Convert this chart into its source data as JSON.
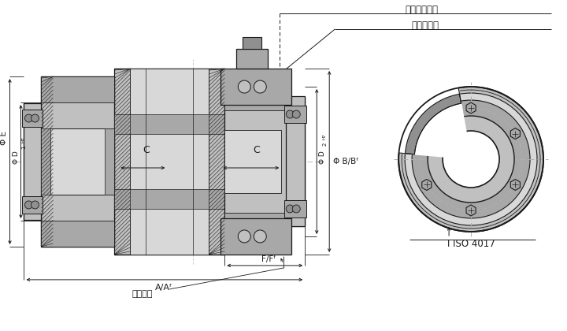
{
  "bg_color": "#ffffff",
  "lc": "#1a1a1a",
  "gray1": "#d8d8d8",
  "gray2": "#c0c0c0",
  "gray3": "#a8a8a8",
  "gray4": "#909090",
  "gray5": "#787878",
  "center_line_color": "#b0b0b0",
  "ann": {
    "zuoyong": "作用距离见表",
    "gou_type": "勾型扬手孔",
    "chai_luo": "拆卸褴母",
    "ISO_label": "I ISO 4017",
    "phi_E": "Φ E",
    "phi_D1": "Φ D",
    "phi_D2": "Φ D",
    "phi_B": "Φ B/B",
    "C_label": "C",
    "AA": "A/A",
    "FF": "F/F"
  },
  "figsize": [
    7.2,
    4.2
  ],
  "dpi": 100
}
